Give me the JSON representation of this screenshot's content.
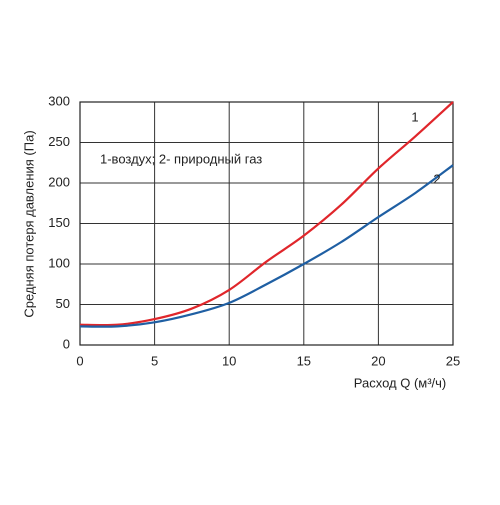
{
  "chart_data": {
    "type": "line",
    "x_label": "Расход Q (м³/ч)",
    "y_label": "Средняя потеря давления (Па)",
    "annotation": "1-воздух; 2- природный газ",
    "x": [
      0,
      2.5,
      5,
      7.5,
      10,
      12.5,
      15,
      17.5,
      20,
      22.5,
      25
    ],
    "series": [
      {
        "name": "1",
        "color": "#e0262b",
        "values": [
          25,
          25,
          32,
          45,
          68,
          103,
          135,
          173,
          218,
          258,
          300
        ]
      },
      {
        "name": "2",
        "color": "#1f5fa3",
        "values": [
          23,
          23,
          28,
          38,
          52,
          75,
          100,
          127,
          158,
          188,
          222
        ]
      }
    ],
    "xlim": [
      0,
      25
    ],
    "xticks": [
      0,
      5,
      10,
      15,
      20,
      25
    ],
    "ylim": [
      0,
      300
    ],
    "yticks": [
      0,
      50,
      100,
      150,
      200,
      250,
      300
    ],
    "grid": true
  }
}
